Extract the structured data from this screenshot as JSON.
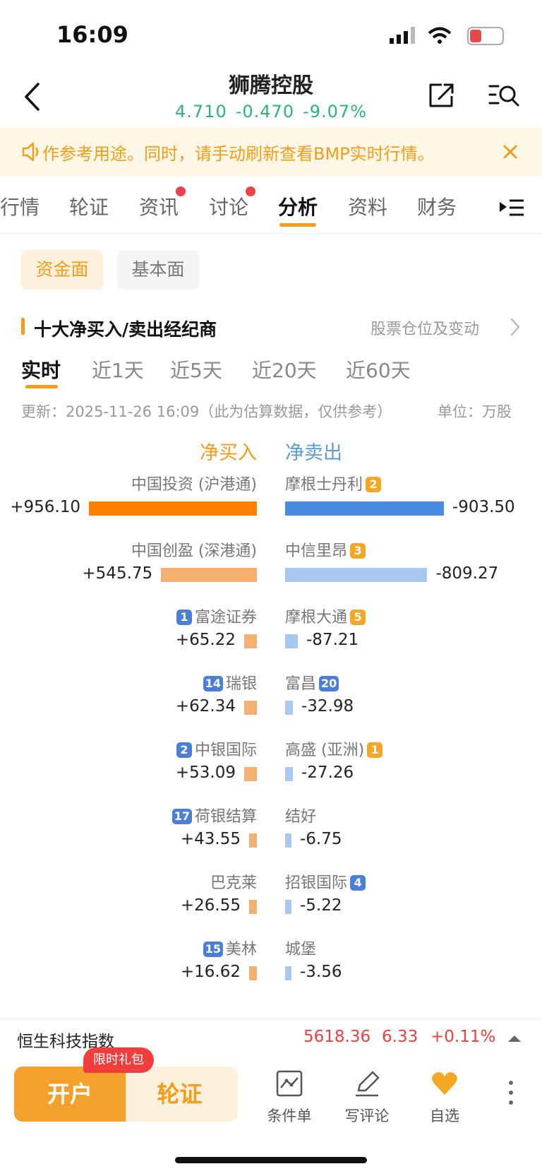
{
  "status": {
    "time": "16:09",
    "battery": "8"
  },
  "header": {
    "title": "狮腾控股",
    "price": "4.710",
    "change": "-0.470",
    "change_pct": "-9.07%"
  },
  "banner": {
    "text": "作参考用途。同时，请手动刷新查看BMP实时行情。"
  },
  "tabs": [
    "行情",
    "轮证",
    "资讯",
    "讨论",
    "分析",
    "资料",
    "财务"
  ],
  "segments": {
    "fund": "资金面",
    "fundamental": "基本面"
  },
  "section": {
    "title": "十大净买入/卖出经纪商",
    "link": "股票仓位及变动"
  },
  "periods": [
    "实时",
    "近1天",
    "近5天",
    "近20天",
    "近60天"
  ],
  "update_text": "更新：2025-11-26 16:09（此为估算数据，仅供参考）",
  "unit_text": "单位：万股",
  "headers": {
    "buy": "净买入",
    "sell": "净卖出"
  },
  "buy_list": [
    {
      "name": "中国投资 (沪港通)",
      "badge": "",
      "value": "+956.10",
      "amount": 956.1
    },
    {
      "name": "中国创盈 (深港通)",
      "badge": "",
      "value": "+545.75",
      "amount": 545.75
    },
    {
      "name": "富途证券",
      "badge": "1",
      "value": "+65.22",
      "amount": 65.22
    },
    {
      "name": "瑞银",
      "badge": "14",
      "value": "+62.34",
      "amount": 62.34
    },
    {
      "name": "中银国际",
      "badge": "2",
      "value": "+53.09",
      "amount": 53.09
    },
    {
      "name": "荷银结算",
      "badge": "17",
      "value": "+43.55",
      "amount": 43.55
    },
    {
      "name": "巴克莱",
      "badge": "",
      "value": "+26.55",
      "amount": 26.55
    },
    {
      "name": "美林",
      "badge": "15",
      "value": "+16.62",
      "amount": 16.62
    }
  ],
  "sell_list": [
    {
      "name": "摩根士丹利",
      "badge": "2",
      "value": "-903.50",
      "amount": 903.5
    },
    {
      "name": "中信里昂",
      "badge": "3",
      "value": "-809.27",
      "amount": 809.27
    },
    {
      "name": "摩根大通",
      "badge": "5",
      "value": "-87.21",
      "amount": 87.21
    },
    {
      "name": "富昌",
      "badge": "20",
      "value": "-32.98",
      "amount": 32.98
    },
    {
      "name": "高盛 (亚洲)",
      "badge": "1",
      "value": "-27.26",
      "amount": 27.26
    },
    {
      "name": "结好",
      "badge": "",
      "value": "-6.75",
      "amount": 6.75
    },
    {
      "name": "招银国际",
      "badge": "4",
      "value": "-5.22",
      "amount": 5.22
    },
    {
      "name": "城堡",
      "badge": "",
      "value": "-3.56",
      "amount": 3.56
    }
  ],
  "index_bar": {
    "name": "恒生科技指数",
    "value": "5618.36",
    "change": "6.33",
    "change_pct": "+0.11%"
  },
  "bottom": {
    "open_label": "开户",
    "warrant_label": "轮证",
    "gift_label": "限时礼包",
    "tools": [
      "条件单",
      "写评论",
      "自选"
    ]
  },
  "colors": {
    "buy_dark": "#ff7f00",
    "buy_light": "#f4b071",
    "sell_dark": "#4a8be2",
    "sell_light": "#a9c8ef",
    "accent": "#f39c19",
    "up": "#2db37a"
  }
}
